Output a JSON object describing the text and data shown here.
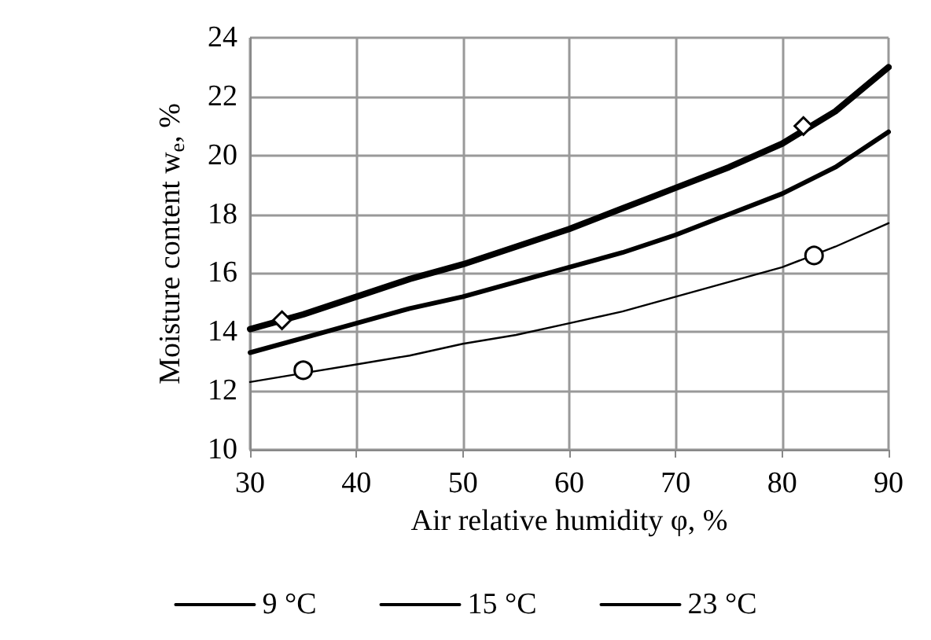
{
  "chart_data": {
    "type": "line",
    "xlabel": "Air relative humidity φ, %",
    "ylabel": "Moisture content w$_{e}$, %",
    "x": [
      30,
      35,
      40,
      45,
      50,
      55,
      60,
      65,
      70,
      75,
      80,
      85,
      90
    ],
    "series": [
      {
        "name": "9 °C",
        "color": "#000000",
        "values": [
          14.1,
          14.6,
          15.2,
          15.8,
          16.3,
          16.9,
          17.5,
          18.2,
          18.9,
          19.6,
          20.4,
          21.5,
          23.0
        ]
      },
      {
        "name": "15 °C",
        "color": "#000000",
        "values": [
          13.3,
          13.8,
          14.3,
          14.8,
          15.2,
          15.7,
          16.2,
          16.7,
          17.3,
          18.0,
          18.7,
          19.6,
          20.8
        ]
      },
      {
        "name": "23 °C",
        "color": "#000000",
        "values": [
          12.3,
          12.6,
          12.9,
          13.2,
          13.6,
          13.9,
          14.3,
          14.7,
          15.2,
          15.7,
          16.2,
          16.9,
          17.7
        ]
      },
      {
        "type": "scatter",
        "marker": "diamond",
        "color": "#000000",
        "x": [
          33,
          82
        ],
        "values": [
          14.4,
          21.0
        ]
      },
      {
        "type": "scatter",
        "marker": "circle",
        "color": "#000000",
        "x": [
          35,
          83
        ],
        "values": [
          12.7,
          16.6
        ]
      }
    ],
    "xlim": [
      30,
      90
    ],
    "xticks": [
      30,
      40,
      50,
      60,
      70,
      80,
      90
    ],
    "ylim": [
      10,
      24
    ],
    "yticks": [
      10,
      12,
      14,
      16,
      18,
      20,
      22,
      24
    ],
    "grid": true,
    "legend": "bottom",
    "marker": "none",
    "line_style": "solid"
  }
}
